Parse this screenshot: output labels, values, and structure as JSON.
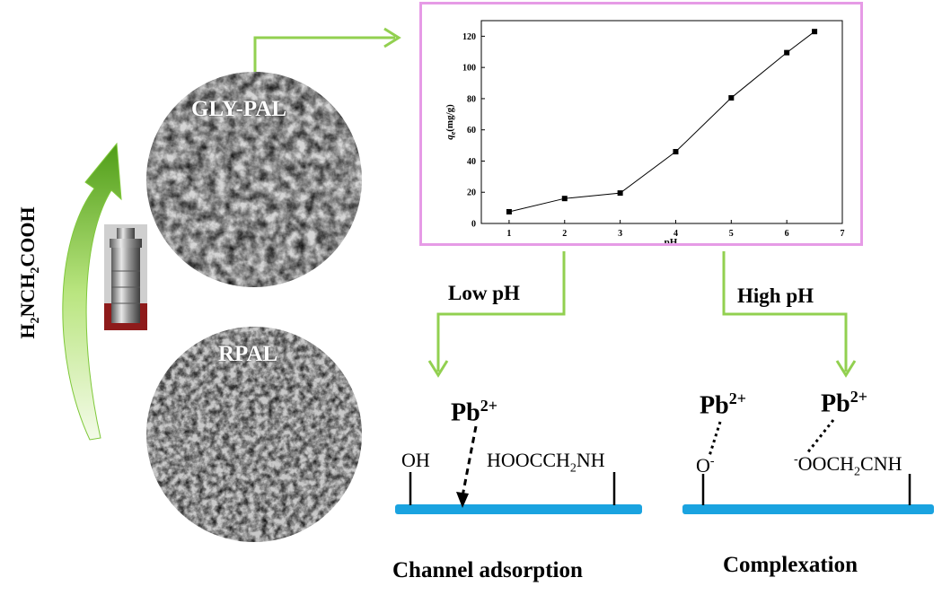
{
  "reagent_formula": {
    "prefix": "H",
    "sub1": "2",
    "middle": "NCH",
    "sub2": "2",
    "suffix": "COOH"
  },
  "sem_images": {
    "top": {
      "label": "GLY-PAL"
    },
    "bottom": {
      "label": "RPAL"
    }
  },
  "branches": {
    "low": {
      "label": "Low pH",
      "ion": {
        "base": "Pb",
        "charge": "2+"
      },
      "groups": {
        "left": "OH",
        "right": {
          "prefix": "HOOCCH",
          "sub": "2",
          "suffix": "NH"
        }
      },
      "caption": "Channel adsorption"
    },
    "high": {
      "label": "High pH",
      "ion_left": {
        "base": "Pb",
        "charge": "2+"
      },
      "ion_right": {
        "base": "Pb",
        "charge": "2+"
      },
      "groups": {
        "left": {
          "base": "O",
          "charge": "-"
        },
        "right": {
          "charge": "-",
          "prefix": "OOCH",
          "sub": "2",
          "suffix": "CNH"
        }
      },
      "caption": "Complexation"
    }
  },
  "colors": {
    "arrow_green": "#8fd14f",
    "surface_blue": "#1aa3e0",
    "chart_border": "#e69be6"
  },
  "chart_data": {
    "type": "line",
    "x": [
      1,
      2,
      3,
      4,
      5,
      6,
      6.5
    ],
    "y": [
      7.5,
      16,
      19.5,
      46,
      80.5,
      109.5,
      123
    ],
    "xlabel": "pH",
    "ylabel": {
      "q": "q",
      "sub": "e",
      "unit": "(mg/g)"
    },
    "xlim": [
      0.5,
      7
    ],
    "ylim": [
      0,
      130
    ],
    "xticks": [
      1,
      2,
      3,
      4,
      5,
      6,
      7
    ],
    "yticks": [
      0,
      20,
      40,
      60,
      80,
      100,
      120
    ],
    "marker": "square",
    "grid": false
  }
}
